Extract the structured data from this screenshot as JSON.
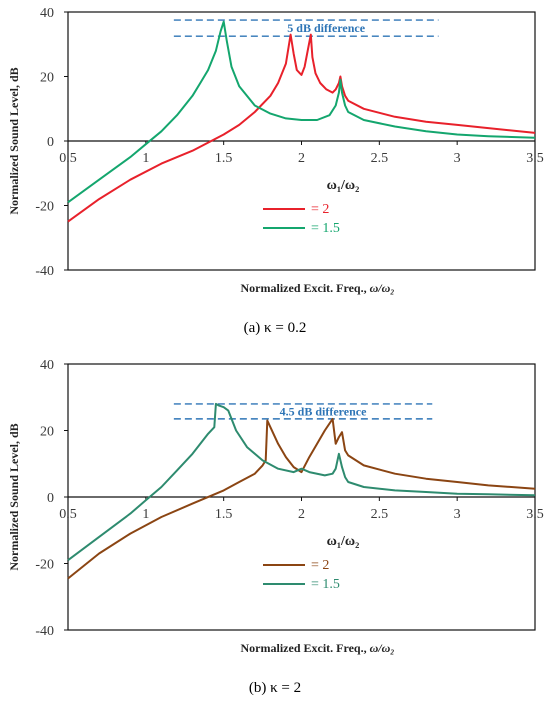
{
  "chart_data": [
    {
      "type": "line",
      "caption": "(a) κ = 0.2",
      "xlabel": "Normalized Excit. Freq., ",
      "xlabel_var": "ω/ω₂",
      "ylabel": "Normalized Sound Level, dB",
      "xlim": [
        0.5,
        3.5
      ],
      "ylim": [
        -40,
        40
      ],
      "xticks": [
        "0.5",
        "1",
        "1.5",
        "2",
        "2.5",
        "3",
        "3.5"
      ],
      "yticks": [
        "40",
        "20",
        "0",
        "-20",
        "-40"
      ],
      "legend_title": "ω₁/ω₂",
      "annotation": {
        "text": "5 dB difference",
        "y_upper": 37.5,
        "y_lower": 32.5,
        "x_start": 1.18,
        "x_end": 2.88
      },
      "series": [
        {
          "name": "= 2",
          "color": "#e8212b",
          "x": [
            0.5,
            0.7,
            0.9,
            1.1,
            1.3,
            1.5,
            1.6,
            1.7,
            1.8,
            1.85,
            1.9,
            1.93,
            1.95,
            1.97,
            1.99,
            2.0,
            2.02,
            2.04,
            2.06,
            2.07,
            2.09,
            2.12,
            2.16,
            2.2,
            2.22,
            2.24,
            2.25,
            2.26,
            2.28,
            2.3,
            2.4,
            2.6,
            2.8,
            3.0,
            3.2,
            3.5
          ],
          "y": [
            -25,
            -18,
            -12,
            -7,
            -3,
            2,
            5,
            9,
            14,
            18,
            24,
            33,
            27,
            22,
            21,
            20.5,
            23,
            28,
            33,
            26,
            21,
            18,
            16,
            15,
            16,
            18,
            20,
            17,
            14,
            12.5,
            10,
            7.5,
            6,
            5,
            4,
            2.5
          ]
        },
        {
          "name": "= 1.5",
          "color": "#14a66e",
          "x": [
            0.5,
            0.7,
            0.9,
            1.0,
            1.1,
            1.2,
            1.3,
            1.35,
            1.4,
            1.45,
            1.48,
            1.5,
            1.52,
            1.55,
            1.6,
            1.7,
            1.8,
            1.9,
            2.0,
            2.1,
            2.18,
            2.22,
            2.24,
            2.25,
            2.26,
            2.28,
            2.3,
            2.4,
            2.6,
            2.8,
            3.0,
            3.2,
            3.5
          ],
          "y": [
            -19,
            -12,
            -5,
            -1,
            3,
            8,
            14,
            18,
            22,
            28,
            34,
            37,
            31,
            23,
            17,
            11,
            8.5,
            7,
            6.5,
            6.5,
            8,
            11,
            15,
            19,
            15,
            11,
            9,
            6.5,
            4.5,
            3,
            2,
            1.5,
            1
          ]
        }
      ]
    },
    {
      "type": "line",
      "caption": "(b) κ = 2",
      "xlabel": "Normalized Excit. Freq., ",
      "xlabel_var": "ω/ω₂",
      "ylabel": "Normalized Sound Level, dB",
      "xlim": [
        0.5,
        3.5
      ],
      "ylim": [
        -40,
        40
      ],
      "xticks": [
        "0.5",
        "1",
        "1.5",
        "2",
        "2.5",
        "3",
        "3.5"
      ],
      "yticks": [
        "40",
        "20",
        "0",
        "-20",
        "-40"
      ],
      "legend_title": "ω₁/ω₂",
      "annotation": {
        "text": "4.5 dB difference",
        "y_upper": 28,
        "y_lower": 23.5,
        "x_start": 1.18,
        "x_end": 2.84
      },
      "series": [
        {
          "name": "= 2",
          "color": "#8b4513",
          "x": [
            0.5,
            0.7,
            0.9,
            1.1,
            1.3,
            1.5,
            1.6,
            1.7,
            1.75,
            1.77,
            1.78,
            1.8,
            1.85,
            1.9,
            1.95,
            2.0,
            2.05,
            2.1,
            2.15,
            2.2,
            2.22,
            2.24,
            2.26,
            2.28,
            2.3,
            2.4,
            2.6,
            2.8,
            3.0,
            3.2,
            3.5
          ],
          "y": [
            -24.5,
            -17,
            -11,
            -6,
            -2,
            2,
            4.5,
            7,
            9.5,
            11,
            23,
            21,
            16,
            12,
            9,
            7.5,
            12,
            16,
            20,
            23.5,
            16,
            18,
            19.5,
            14,
            12.5,
            9.5,
            7,
            5.5,
            4.5,
            3.5,
            2.5
          ]
        },
        {
          "name": "= 1.5",
          "color": "#2e8b6f",
          "x": [
            0.5,
            0.7,
            0.9,
            1.0,
            1.1,
            1.2,
            1.3,
            1.4,
            1.44,
            1.45,
            1.47,
            1.5,
            1.53,
            1.58,
            1.65,
            1.75,
            1.85,
            1.95,
            2.0,
            2.05,
            2.15,
            2.2,
            2.22,
            2.24,
            2.26,
            2.28,
            2.3,
            2.4,
            2.6,
            2.8,
            3.0,
            3.2,
            3.5
          ],
          "y": [
            -19,
            -12,
            -5,
            -1,
            3,
            8,
            13,
            19,
            21,
            28,
            27.5,
            27,
            26,
            20,
            15,
            11,
            8.5,
            7.5,
            8.5,
            7.5,
            6.5,
            7,
            8.5,
            13,
            9,
            6,
            4.5,
            3,
            2,
            1.5,
            1,
            0.8,
            0.5
          ]
        }
      ]
    }
  ]
}
